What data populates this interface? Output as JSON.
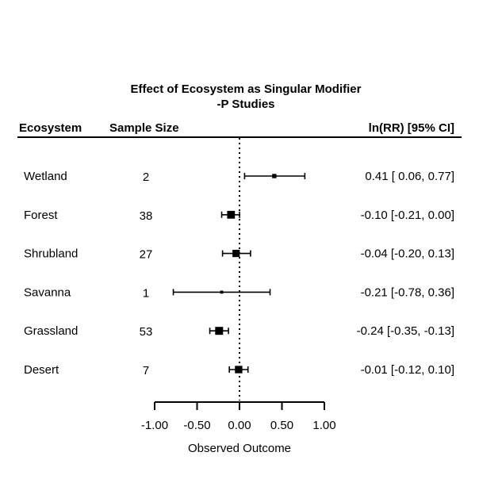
{
  "chart_data": {
    "type": "forest",
    "title": "Effect of Ecosystem as Singular Modifier",
    "subtitle": "-P Studies",
    "columns": {
      "label": "Ecosystem",
      "sample_size": "Sample Size",
      "estimate": "ln(RR) [95% CI]"
    },
    "xlabel": "Observed Outcome",
    "xlim": [
      -1.0,
      1.0
    ],
    "xticks": [
      -1.0,
      -0.5,
      0.0,
      0.5,
      1.0
    ],
    "xtick_labels": [
      "-1.00",
      "-0.50",
      "0.00",
      "0.50",
      "1.00"
    ],
    "reference_line": 0.0,
    "rows": [
      {
        "label": "Wetland",
        "n": "2",
        "estimate": 0.41,
        "lower": 0.06,
        "upper": 0.77,
        "ci_text": "0.41 [ 0.06,  0.77]",
        "weight": 0.18
      },
      {
        "label": "Forest",
        "n": "38",
        "estimate": -0.1,
        "lower": -0.21,
        "upper": 0.0,
        "ci_text": "-0.10 [-0.21,  0.00]",
        "weight": 0.95
      },
      {
        "label": "Shrubland",
        "n": "27",
        "estimate": -0.04,
        "lower": -0.2,
        "upper": 0.13,
        "ci_text": "-0.04 [-0.20,  0.13]",
        "weight": 0.8
      },
      {
        "label": "Savanna",
        "n": "1",
        "estimate": -0.21,
        "lower": -0.78,
        "upper": 0.36,
        "ci_text": "-0.21 [-0.78,  0.36]",
        "weight": 0.05
      },
      {
        "label": "Grassland",
        "n": "53",
        "estimate": -0.24,
        "lower": -0.35,
        "upper": -0.13,
        "ci_text": "-0.24 [-0.35, -0.13]",
        "weight": 1.0
      },
      {
        "label": "Desert",
        "n": "7",
        "estimate": -0.01,
        "lower": -0.12,
        "upper": 0.1,
        "ci_text": "-0.01 [-0.12,  0.10]",
        "weight": 0.85
      }
    ]
  }
}
